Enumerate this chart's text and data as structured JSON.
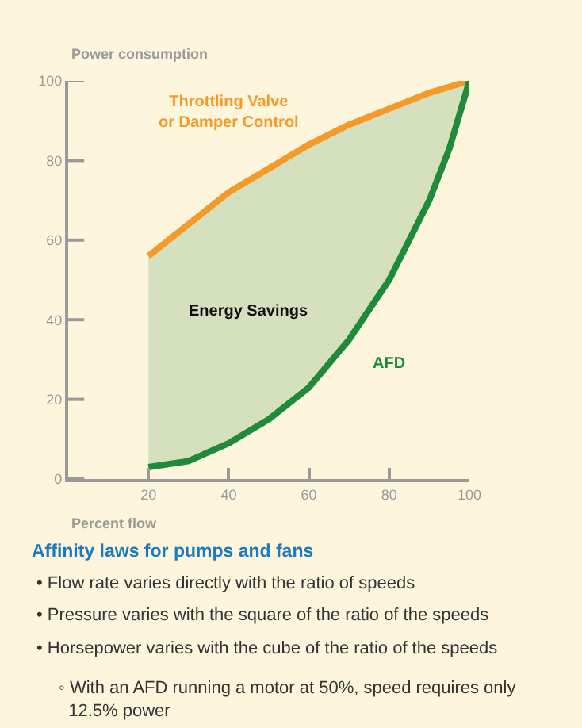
{
  "chart_data": {
    "type": "line",
    "ylabel": "Power consumption",
    "xlabel": "Percent flow",
    "xlim": [
      0,
      100
    ],
    "xticks": [
      20,
      40,
      60,
      80,
      100
    ],
    "ylim": [
      0,
      100
    ],
    "yticks": [
      0,
      20,
      40,
      60,
      80,
      100
    ],
    "grid": false,
    "legend": false,
    "marker": "none",
    "line_style": "solid",
    "x": [
      20,
      30,
      40,
      50,
      60,
      70,
      80,
      90,
      95,
      100
    ],
    "series": [
      {
        "name": "Throttling Valve\nor Damper Control",
        "color": "#f39a2b",
        "values": [
          56,
          64,
          72,
          78,
          84,
          89,
          93,
          97,
          98.5,
          100
        ]
      },
      {
        "name": "AFD",
        "color": "#1f8a3a",
        "values": [
          3,
          4.5,
          9,
          15,
          23,
          35,
          50,
          70,
          83,
          100
        ]
      }
    ],
    "annotations": [
      "Energy Savings",
      "Affinity laws for pumps and fans",
      "• Flow rate varies directly with the ratio of speeds",
      "• Pressure varies with the square of the ratio of the speeds",
      "• Horsepower varies with the cube of the ratio of the speeds",
      "◦ With an AFD running a motor at 50%, speed requires only\n12.5% power"
    ]
  }
}
